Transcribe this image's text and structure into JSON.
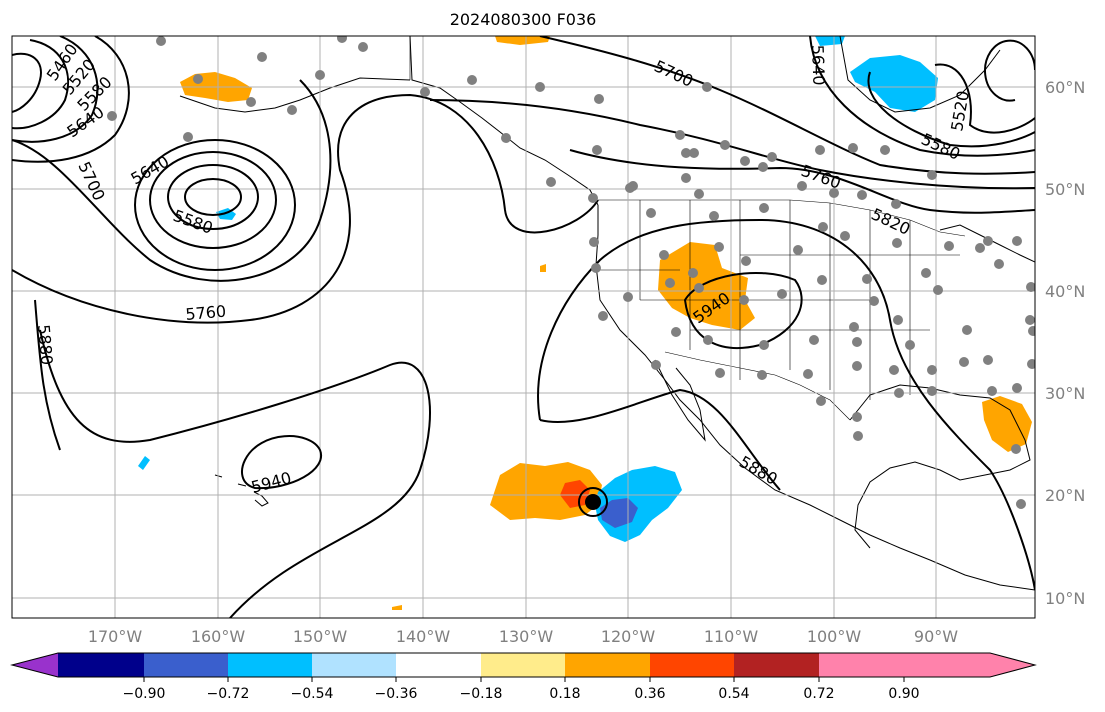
{
  "title": "2024080300 F036",
  "lon_labels": [
    "170°W",
    "160°W",
    "150°W",
    "140°W",
    "130°W",
    "120°W",
    "110°W",
    "100°W",
    "90°W"
  ],
  "lat_labels": [
    "60°N",
    "50°N",
    "40°N",
    "30°N",
    "20°N",
    "10°N"
  ],
  "contour_labels": [
    "5460",
    "5520",
    "5580",
    "5640",
    "5700",
    "5640",
    "5580",
    "5760",
    "5880",
    "5940",
    "5700",
    "5640",
    "5760",
    "5820",
    "5940",
    "5880",
    "5520",
    "5580"
  ],
  "colorbar": {
    "colors": [
      "#9932cc",
      "#00008b",
      "#3a5fcd",
      "#00bfff",
      "#b0e2ff",
      "#ffffff",
      "#ffec8b",
      "#ffa500",
      "#ff4500",
      "#b22222",
      "#ff82ab"
    ],
    "tick_labels": [
      "−0.90",
      "−0.72",
      "−0.54",
      "−0.36",
      "−0.18",
      "0.18",
      "0.36",
      "0.54",
      "0.72",
      "0.90"
    ]
  },
  "anomaly_colors": {
    "orange": "#ffa500",
    "red": "#ff4500",
    "deep_sky_blue": "#00bfff",
    "royal_blue": "#3a5fcd"
  },
  "station_color": "#808080"
}
